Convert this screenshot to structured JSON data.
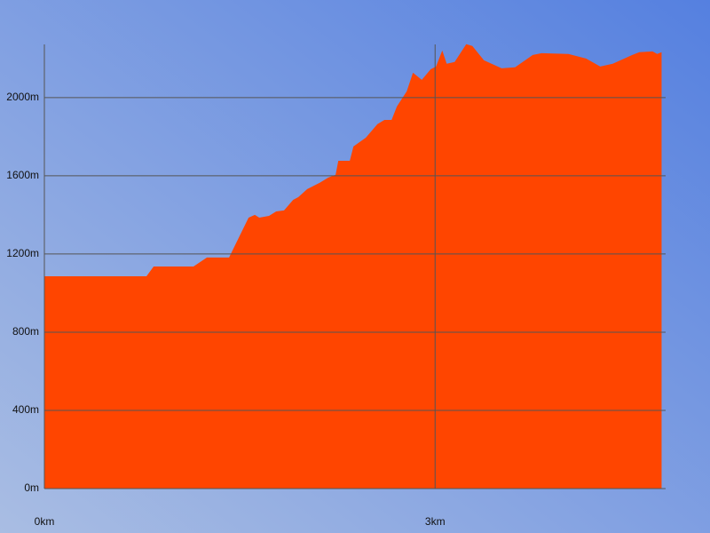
{
  "chart_data": {
    "type": "area",
    "x": [
      0,
      0.784,
      0.839,
      1.145,
      1.248,
      1.418,
      1.568,
      1.616,
      1.65,
      1.725,
      1.78,
      1.84,
      1.91,
      1.95,
      2.018,
      2.114,
      2.18,
      2.236,
      2.257,
      2.345,
      2.373,
      2.468,
      2.557,
      2.611,
      2.666,
      2.707,
      2.782,
      2.83,
      2.898,
      2.966,
      3.007,
      3.055,
      3.089,
      3.15,
      3.239,
      3.286,
      3.375,
      3.511,
      3.614,
      3.75,
      3.818,
      4.023,
      4.159,
      4.268,
      4.364,
      4.514,
      4.568,
      4.67,
      4.705,
      4.739
    ],
    "values": [
      1086,
      1086,
      1136,
      1136,
      1182,
      1182,
      1386,
      1400,
      1386,
      1395,
      1418,
      1423,
      1477,
      1491,
      1532,
      1564,
      1591,
      1605,
      1677,
      1677,
      1750,
      1795,
      1864,
      1886,
      1886,
      1955,
      2032,
      2127,
      2091,
      2145,
      2159,
      2241,
      2173,
      2182,
      2273,
      2264,
      2191,
      2150,
      2155,
      2218,
      2227,
      2223,
      2200,
      2159,
      2173,
      2218,
      2232,
      2236,
      2223,
      2232
    ],
    "color": "#ff4500",
    "xlim": [
      0,
      4.77
    ],
    "ylim": [
      0,
      2272
    ],
    "xticks": [
      {
        "value": 0,
        "label": "0km"
      },
      {
        "value": 3,
        "label": "3km"
      }
    ],
    "yticks": [
      {
        "value": 0,
        "label": "0m"
      },
      {
        "value": 400,
        "label": "400m"
      },
      {
        "value": 800,
        "label": "800m"
      },
      {
        "value": 1200,
        "label": "1200m"
      },
      {
        "value": 1600,
        "label": "1600m"
      },
      {
        "value": 2000,
        "label": "2000m"
      }
    ],
    "grid": true
  }
}
